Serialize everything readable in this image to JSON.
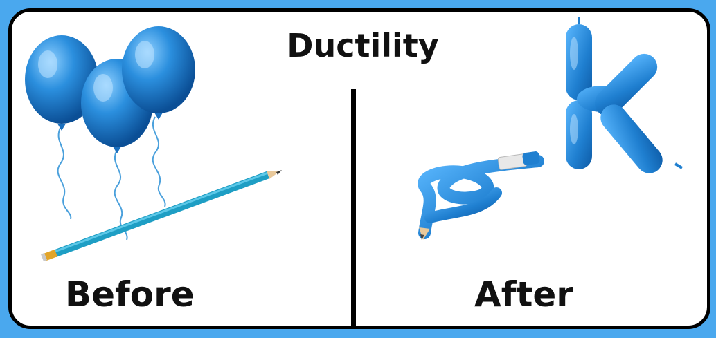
{
  "title": "Ductility",
  "labels": {
    "before": "Before",
    "after": "After"
  },
  "colors": {
    "background": "#4aa8ee",
    "balloon": "#1f7fd0",
    "pencil": "#1e9ec4",
    "border": "#000000"
  },
  "icons": [
    "balloon-icon",
    "pencil-icon",
    "knotted-pencil-icon",
    "balloon-letter-k-icon"
  ]
}
